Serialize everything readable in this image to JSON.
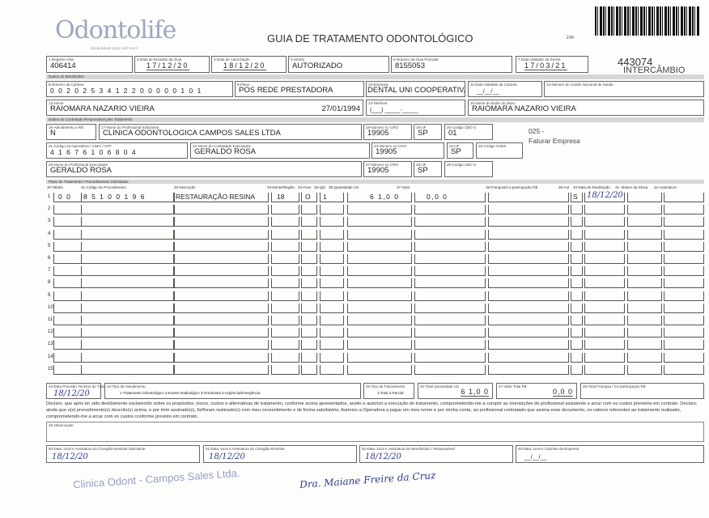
{
  "header": {
    "logo_text": "Odontolife",
    "logo_tagline": "tranquilidade para você sorrir",
    "title": "GUIA DE TRATAMENTO ODONTOLÓGICO",
    "guia_number_label": "2.Nº",
    "code": "443074",
    "code_subtitle": "INTERCÂMBIO"
  },
  "fields": {
    "registro_ans": {
      "label": "1-Registro ANS",
      "value": "406414"
    },
    "data_emissao": {
      "label": "3-Data de Emissão da Guia",
      "value": "17/12/20"
    },
    "data_autorizacao": {
      "label": "4-Data de Autorização",
      "value": "18/12/20"
    },
    "senha": {
      "label": "5-Senha",
      "value": "AUTORIZADO"
    },
    "guia_principal": {
      "label": "6-Número da Guia Principal",
      "value": "8155053"
    },
    "validade_senha": {
      "label": "7-Data Validade da Senha",
      "value": "17/03/21"
    },
    "section_beneficiario": "Dados do Beneficiário",
    "carteira": {
      "label": "8-Número da Carteira",
      "value": "0 0 2 0 2 5 3 4 1 2 2 0 0 0 0 0 1 0 1"
    },
    "plano": {
      "label": "9-Plano",
      "value": "POS REDE PRESTADORA"
    },
    "empresa": {
      "label": "10-Empresa",
      "value": "DENTAL UNI  COOPERATIVA"
    },
    "validade_carteira": {
      "label": "11-Data Validade da Carteira",
      "value": "__/__/__"
    },
    "cartao_sus": {
      "label": "12-Número do Cartão Nacional de Saúde",
      "value": ""
    },
    "nome": {
      "label": "13-Nome",
      "value": "RAIOMARA NAZARIO VIEIRA",
      "date": "27/01/1994"
    },
    "telefone": {
      "label": "14-Telefone",
      "value": "(___) _____-_____"
    },
    "titular": {
      "label": "15-Nome do titular do plano",
      "value": "RAIOMARA NAZARIO VIEIRA"
    },
    "section_contratado": "Dados do Contratado Responsável pelo Tratamento",
    "atendimento_rn": {
      "label": "16-Atendimento a RN",
      "value": "N"
    },
    "profissional_solicitante": {
      "label": "17-Nome do Profissional Solicitante",
      "value": "CLINICA ODONTOLOGICA CAMPOS SALES LTDA"
    },
    "cro18": {
      "label": "18-Número no CRO",
      "value": "19905"
    },
    "uf19": {
      "label": "19-UF",
      "value": "SP"
    },
    "cbo20": {
      "label": "20-Código CBO S",
      "value": "01"
    },
    "note": "025 -",
    "note2": "Faturar Empresa",
    "codigo_operadora": {
      "label": "21-Código na Operadora / CNPJ / CPF",
      "value": "4 1 6 7 6 1 0 6 8 0 4"
    },
    "contratado_executante": {
      "label": "22-Nome do Contratado Executante",
      "value": "GERALDO ROSA"
    },
    "cro23": {
      "label": "23-Número no CRO",
      "value": "19905"
    },
    "uf24": {
      "label": "24-UF",
      "value": "SP"
    },
    "cnes": {
      "label": "25-Código CNES",
      "value": ""
    },
    "profissional_executante": {
      "label": "26-Nome do Profissional Executante",
      "value": "GERALDO ROSA"
    },
    "cro27": {
      "label": "27-Número no CRO",
      "value": "19905"
    },
    "uf28": {
      "label": "28-UF",
      "value": "SP"
    },
    "cbo29": {
      "label": "29-Código CBO S",
      "value": ""
    }
  },
  "procedures": {
    "section": "Plano de Tratamento / Procedimentos Solicitados",
    "headers": [
      "30-Tabela",
      "31-Código do Procedimento",
      "32-Descrição",
      "33-Dente/Região",
      "34-Face",
      "35-Qtd",
      "36-Quantidade US",
      "37-Valor",
      "38-Franquia/Co-participação R$",
      "39-Aut",
      "40-Data de Realização",
      "41- Motivo da Glosa",
      "42-Assinatura"
    ],
    "rows": [
      {
        "n": "1",
        "tabela": "0 0",
        "codigo": "8 5 1 0 0 1 9 6",
        "descricao": "RESTAURAÇÃO RESINA",
        "dente": "18",
        "face": "O",
        "qtd": "1",
        "us": "6 1,0 0",
        "valor": "0,0 0",
        "franquia": "",
        "aut": "S",
        "data": "18/12/20"
      },
      {
        "n": "2"
      },
      {
        "n": "3"
      },
      {
        "n": "4"
      },
      {
        "n": "5"
      },
      {
        "n": "6"
      },
      {
        "n": "7"
      },
      {
        "n": "8"
      },
      {
        "n": "9"
      },
      {
        "n": "10"
      },
      {
        "n": "11"
      },
      {
        "n": "12"
      },
      {
        "n": "13"
      },
      {
        "n": "14"
      },
      {
        "n": "15"
      }
    ]
  },
  "totals": {
    "previsao": {
      "label": "43-Data Previsão Término do Tratamento",
      "value": "18/12/20"
    },
    "tipo_atendimento": {
      "label": "44-Tipo de Atendimento",
      "options": "1-Tratamento Odontológico  2-Exame Radiológico  3-Ortodontia  4-Urgência/Emergência"
    },
    "tipo_faturamento": {
      "label": "45-Tipo de Faturamento",
      "options": "1-Total  2-Parcial"
    },
    "total_us": {
      "label": "46-Total Quantidade US",
      "value": "6 1,0 0"
    },
    "valor_total": {
      "label": "47-Valor Total R$",
      "value": "0,0 0"
    },
    "total_franquia": {
      "label": "48-Total Franquia / Co-participação R$",
      "value": ""
    }
  },
  "declaration": "Declaro, que após ter sido devidamente esclarecido sobre os propósitos, riscos, custos e alternativas de tratamento, conforme acima apresentados, aceito e autorizo a execução do tratamento, comprometendo-me a cumprir as orientações do profissional assistente e arcar com os custos previstos em contrato. Declaro, ainda que o(s) procedimento(s) descrito(s) acima, e por mim assinado(s), foi/foram realizado(s) com meu consentimento e de forma satisfatória. Autorizo a Operadora a pagar em meu nome e por minha conta, ao profissional contratado que assina esse documento, os valores referentes ao tratamento realizado, comprometendo-me a arcar com os custos conforme previsto em contrato.",
  "observacao": {
    "label": "49-Observação",
    "value": ""
  },
  "signatures": {
    "s50": {
      "label": "50-Data, local e Assinatura do Cirurgião-Dentista Solicitante",
      "date": "18/12/20"
    },
    "s51": {
      "label": "51-Data, local e Assinatura do Cirurgião-Dentista",
      "date": "18/12/20"
    },
    "s52": {
      "label": "52-Data, local e Assinatura do Beneficiário / Responsável",
      "date": "18/12/20"
    },
    "s53": {
      "label": "53-Data, local e Carimbo da Empresa",
      "date": "__/__/__"
    },
    "stamp": "Clinica Odont - Campos Sales Ltda.",
    "stamp2": "Dra. Maiane Freire da Cruz"
  },
  "colors": {
    "accent_logo": "#9aa7c4",
    "signature_ink": "#2a3a9a",
    "section_bar": "#d6d6d4"
  }
}
